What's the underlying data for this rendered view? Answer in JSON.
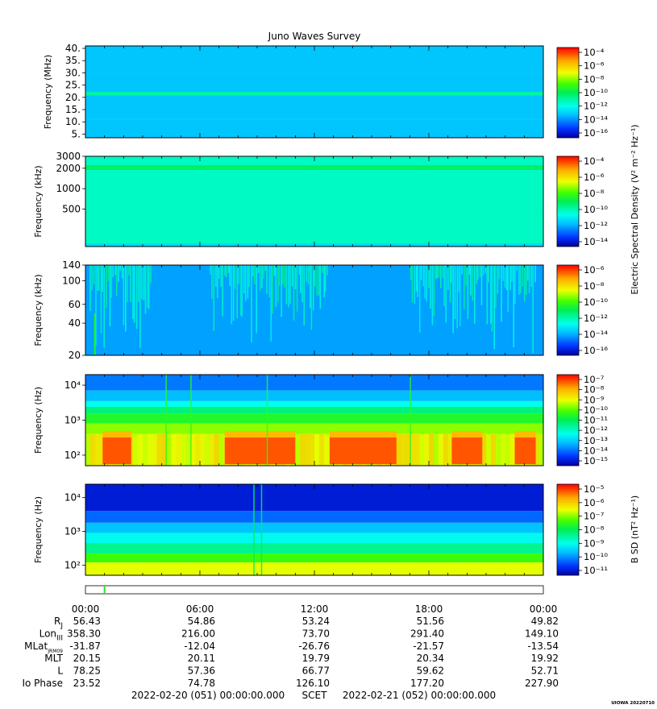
{
  "title": "Juno Waves Survey",
  "colorbar_title": "Electric Spectral Density (V² m⁻² Hz⁻¹)",
  "colorbar_title_b": "B SD (nT² Hz⁻¹)",
  "footer": {
    "start": "2022-02-20 (051) 00:00:00.000",
    "mid": "SCET",
    "end": "2022-02-21 (052) 00:00:00.000",
    "stamp": "UIOWA 20220710"
  },
  "time_ticks": [
    "00:00",
    "06:00",
    "12:00",
    "18:00",
    "00:00"
  ],
  "ephemeris": {
    "rows": [
      {
        "label": "R",
        "sub": "J",
        "values": [
          "56.43",
          "54.86",
          "53.24",
          "51.56",
          "49.82"
        ]
      },
      {
        "label": "Lon",
        "sub": "III",
        "values": [
          "358.30",
          "216.00",
          "73.70",
          "291.40",
          "149.10"
        ]
      },
      {
        "label": "MLat",
        "sub": "JRM09",
        "values": [
          "-31.87",
          "-12.04",
          "-26.76",
          "-21.57",
          "-13.54"
        ]
      },
      {
        "label": "MLT",
        "sub": "",
        "values": [
          "20.15",
          "20.11",
          "19.79",
          "20.34",
          "19.92"
        ]
      },
      {
        "label": "L",
        "sub": "",
        "values": [
          "78.25",
          "57.36",
          "66.77",
          "59.62",
          "52.71"
        ]
      },
      {
        "label": "Io Phase",
        "sub": "",
        "values": [
          "23.52",
          "74.78",
          "126.10",
          "177.20",
          "227.90"
        ]
      }
    ]
  },
  "chart_data": [
    {
      "type": "heatmap",
      "ylabel": "Frequency (MHz)",
      "yscale": "linear",
      "ylim": [
        3.5,
        41
      ],
      "yticks": [
        "5.",
        "10.",
        "15.",
        "20.",
        "25.",
        "30.",
        "35.",
        "40."
      ],
      "ytick_values": [
        5,
        10,
        15,
        20,
        25,
        30,
        35,
        40
      ],
      "colorbar": {
        "ticks": [
          "10⁻⁴",
          "10⁻⁶",
          "10⁻⁸",
          "10⁻¹⁰",
          "10⁻¹²",
          "10⁻¹⁴",
          "10⁻¹⁶"
        ],
        "min_exp": -17,
        "max_exp": -4
      },
      "background_level": -13.6,
      "bands": [
        {
          "f": 21.5,
          "w": 1.4,
          "level": -11.5
        }
      ],
      "bursts": []
    },
    {
      "type": "heatmap",
      "ylabel": "Frequency (kHz)",
      "yscale": "log",
      "ylim": [
        140,
        3000
      ],
      "yticks": [
        "3000",
        "2000",
        "1000",
        "500"
      ],
      "ytick_values": [
        3000,
        2000,
        1000,
        500
      ],
      "colorbar": {
        "ticks": [
          "10⁻⁴",
          "10⁻⁶",
          "10⁻⁸",
          "10⁻¹⁰",
          "10⁻¹²",
          "10⁻¹⁴"
        ],
        "min_exp": -15,
        "max_exp": -3
      },
      "background_level": -10.3,
      "bands": [
        {
          "f": 2050,
          "w": 0.08,
          "level": -9.2
        }
      ],
      "bursts": []
    },
    {
      "type": "heatmap",
      "ylabel": "Frequency (kHz)",
      "yscale": "log",
      "ylim": [
        20,
        140
      ],
      "yticks": [
        "140",
        "100",
        "60",
        "40",
        "20"
      ],
      "ytick_values": [
        140,
        100,
        60,
        40,
        20
      ],
      "colorbar": {
        "ticks": [
          "10⁻⁶",
          "10⁻⁸",
          "10⁻¹⁰",
          "10⁻¹²",
          "10⁻¹⁴",
          "10⁻¹⁶"
        ],
        "min_exp": -17,
        "max_exp": -6
      },
      "background_level": -14.6,
      "bands": [],
      "bursts": [
        {
          "t0": 0.2,
          "t1": 3.5,
          "level": -12.0
        },
        {
          "t0": 6.5,
          "t1": 12.7,
          "level": -12.0
        },
        {
          "t0": 17.0,
          "t1": 23.6,
          "level": -12.0
        }
      ]
    },
    {
      "type": "heatmap",
      "ylabel": "Frequency (Hz)",
      "yscale": "log",
      "ylim": [
        50,
        20000
      ],
      "yticks": [
        "10⁴",
        "10³",
        "10²"
      ],
      "ytick_values": [
        10000,
        1000,
        100
      ],
      "colorbar": {
        "ticks": [
          "10⁻⁷",
          "10⁻⁸",
          "10⁻⁹",
          "10⁻¹⁰",
          "10⁻¹¹",
          "10⁻¹²",
          "10⁻¹³",
          "10⁻¹⁴",
          "10⁻¹⁵"
        ],
        "min_exp": -15,
        "max_exp": -7
      },
      "hot_intervals": [
        {
          "t0": 0.9,
          "t1": 2.4
        },
        {
          "t0": 7.3,
          "t1": 11.0
        },
        {
          "t0": 12.8,
          "t1": 16.3
        },
        {
          "t0": 19.2,
          "t1": 20.8
        },
        {
          "t0": 22.5,
          "t1": 23.6
        }
      ]
    },
    {
      "type": "heatmap",
      "ylabel": "Frequency (Hz)",
      "yscale": "log",
      "ylim": [
        50,
        25000
      ],
      "yticks": [
        "10⁴",
        "10³",
        "10²"
      ],
      "ytick_values": [
        10000,
        1000,
        100
      ],
      "colorbar": {
        "ticks": [
          "10⁻⁵",
          "10⁻⁶",
          "10⁻⁷",
          "10⁻⁸",
          "10⁻⁹",
          "10⁻¹⁰",
          "10⁻¹¹"
        ],
        "min_exp": -11,
        "max_exp": -4
      }
    }
  ],
  "timeline_marker_hour": 1.0
}
